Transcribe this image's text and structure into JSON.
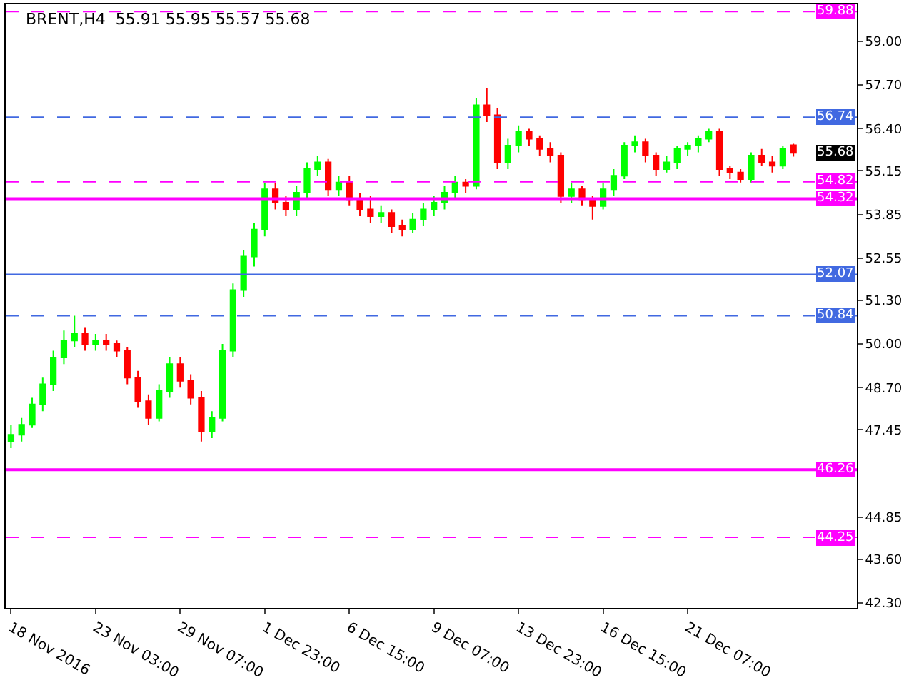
{
  "chart_data": {
    "type": "candlestick",
    "title": "BRENT,H4  55.91 55.95 55.57 55.68",
    "categories": [
      "18 Nov 2016",
      null,
      null,
      null,
      null,
      null,
      null,
      null,
      "23 Nov 03:00",
      null,
      null,
      null,
      null,
      null,
      null,
      null,
      "29 Nov 07:00",
      null,
      null,
      null,
      null,
      null,
      null,
      null,
      "1 Dec 23:00",
      null,
      null,
      null,
      null,
      null,
      null,
      null,
      "6 Dec 15:00",
      null,
      null,
      null,
      null,
      null,
      null,
      null,
      "9 Dec 07:00",
      null,
      null,
      null,
      null,
      null,
      null,
      null,
      "13 Dec 23:00",
      null,
      null,
      null,
      null,
      null,
      null,
      null,
      "16 Dec 15:00",
      null,
      null,
      null,
      null,
      null,
      null,
      null,
      "21 Dec 07:00",
      null,
      null,
      null,
      null,
      null,
      null,
      null,
      null,
      null,
      null
    ],
    "ohlc": [
      [
        47.1,
        47.6,
        46.9,
        47.3
      ],
      [
        47.3,
        47.8,
        47.1,
        47.6
      ],
      [
        47.6,
        48.4,
        47.5,
        48.2
      ],
      [
        48.2,
        49.0,
        48.0,
        48.8
      ],
      [
        48.8,
        49.8,
        48.6,
        49.6
      ],
      [
        49.6,
        50.4,
        49.4,
        50.1
      ],
      [
        50.1,
        50.84,
        49.9,
        50.3
      ],
      [
        50.3,
        50.5,
        49.8,
        50.0
      ],
      [
        50.0,
        50.3,
        49.8,
        50.1
      ],
      [
        50.1,
        50.3,
        49.8,
        50.0
      ],
      [
        50.0,
        50.1,
        49.6,
        49.8
      ],
      [
        49.8,
        49.9,
        48.8,
        49.0
      ],
      [
        49.0,
        49.2,
        48.1,
        48.3
      ],
      [
        48.3,
        48.5,
        47.6,
        47.8
      ],
      [
        47.8,
        48.8,
        47.7,
        48.6
      ],
      [
        48.6,
        49.6,
        48.4,
        49.4
      ],
      [
        49.4,
        49.6,
        48.7,
        48.9
      ],
      [
        48.9,
        49.1,
        48.2,
        48.4
      ],
      [
        48.4,
        48.6,
        47.1,
        47.4
      ],
      [
        47.4,
        48.0,
        47.2,
        47.8
      ],
      [
        47.8,
        50.0,
        47.7,
        49.8
      ],
      [
        49.8,
        51.8,
        49.6,
        51.6
      ],
      [
        51.6,
        52.8,
        51.4,
        52.6
      ],
      [
        52.6,
        53.6,
        52.3,
        53.4
      ],
      [
        53.4,
        54.8,
        53.2,
        54.6
      ],
      [
        54.6,
        54.8,
        54.0,
        54.2
      ],
      [
        54.2,
        54.4,
        53.8,
        54.0
      ],
      [
        54.0,
        54.7,
        53.8,
        54.5
      ],
      [
        54.5,
        55.4,
        54.3,
        55.2
      ],
      [
        55.2,
        55.6,
        55.0,
        55.4
      ],
      [
        55.4,
        55.5,
        54.4,
        54.6
      ],
      [
        54.6,
        55.0,
        54.4,
        54.8
      ],
      [
        54.8,
        55.0,
        54.1,
        54.3
      ],
      [
        54.3,
        54.5,
        53.8,
        54.0
      ],
      [
        54.0,
        54.4,
        53.6,
        53.8
      ],
      [
        53.8,
        54.1,
        53.6,
        53.9
      ],
      [
        53.9,
        54.0,
        53.3,
        53.5
      ],
      [
        53.5,
        53.7,
        53.2,
        53.4
      ],
      [
        53.4,
        53.9,
        53.3,
        53.7
      ],
      [
        53.7,
        54.2,
        53.5,
        54.0
      ],
      [
        54.0,
        54.4,
        53.8,
        54.2
      ],
      [
        54.2,
        54.7,
        54.0,
        54.5
      ],
      [
        54.5,
        55.0,
        54.3,
        54.8
      ],
      [
        54.8,
        54.9,
        54.5,
        54.7
      ],
      [
        54.7,
        57.3,
        54.6,
        57.1
      ],
      [
        57.1,
        57.6,
        56.6,
        56.8
      ],
      [
        56.8,
        57.0,
        55.2,
        55.4
      ],
      [
        55.4,
        56.1,
        55.2,
        55.9
      ],
      [
        55.9,
        56.5,
        55.7,
        56.3
      ],
      [
        56.3,
        56.4,
        55.9,
        56.1
      ],
      [
        56.1,
        56.2,
        55.6,
        55.8
      ],
      [
        55.8,
        56.0,
        55.4,
        55.6
      ],
      [
        55.6,
        55.7,
        54.2,
        54.4
      ],
      [
        54.4,
        54.8,
        54.2,
        54.6
      ],
      [
        54.6,
        54.7,
        54.1,
        54.3
      ],
      [
        54.3,
        54.4,
        53.7,
        54.1
      ],
      [
        54.1,
        54.8,
        54.0,
        54.6
      ],
      [
        54.6,
        55.2,
        54.4,
        55.0
      ],
      [
        55.0,
        56.0,
        54.9,
        55.9
      ],
      [
        55.9,
        56.2,
        55.7,
        56.0
      ],
      [
        56.0,
        56.1,
        55.4,
        55.6
      ],
      [
        55.6,
        55.7,
        55.0,
        55.2
      ],
      [
        55.2,
        55.6,
        55.1,
        55.4
      ],
      [
        55.4,
        55.9,
        55.2,
        55.8
      ],
      [
        55.8,
        56.0,
        55.6,
        55.9
      ],
      [
        55.9,
        56.2,
        55.7,
        56.1
      ],
      [
        56.1,
        56.4,
        56.0,
        56.3
      ],
      [
        56.3,
        56.4,
        55.0,
        55.2
      ],
      [
        55.2,
        55.3,
        54.9,
        55.1
      ],
      [
        55.1,
        55.2,
        54.8,
        54.9
      ],
      [
        54.9,
        55.7,
        54.8,
        55.6
      ],
      [
        55.6,
        55.8,
        55.3,
        55.4
      ],
      [
        55.4,
        55.6,
        55.1,
        55.3
      ],
      [
        55.3,
        55.9,
        55.2,
        55.8
      ],
      [
        55.91,
        55.95,
        55.57,
        55.68
      ]
    ],
    "colors": [
      "#00ff00",
      "#00ff00",
      "#00ff00",
      "#00ff00",
      "#00ff00",
      "#00ff00",
      "#00ff00",
      "#ff0000",
      "#00ff00",
      "#ff0000",
      "#ff0000",
      "#ff0000",
      "#ff0000",
      "#ff0000",
      "#00ff00",
      "#00ff00",
      "#ff0000",
      "#ff0000",
      "#ff0000",
      "#00ff00",
      "#00ff00",
      "#00ff00",
      "#00ff00",
      "#00ff00",
      "#00ff00",
      "#ff0000",
      "#ff0000",
      "#00ff00",
      "#00ff00",
      "#00ff00",
      "#ff0000",
      "#00ff00",
      "#ff0000",
      "#ff0000",
      "#ff0000",
      "#00ff00",
      "#ff0000",
      "#ff0000",
      "#00ff00",
      "#00ff00",
      "#00ff00",
      "#00ff00",
      "#00ff00",
      "#ff0000",
      "#00ff00",
      "#ff0000",
      "#ff0000",
      "#00ff00",
      "#00ff00",
      "#ff0000",
      "#ff0000",
      "#ff0000",
      "#ff0000",
      "#00ff00",
      "#ff0000",
      "#ff0000",
      "#00ff00",
      "#00ff00",
      "#00ff00",
      "#00ff00",
      "#ff0000",
      "#ff0000",
      "#00ff00",
      "#00ff00",
      "#00ff00",
      "#00ff00",
      "#00ff00",
      "#ff0000",
      "#ff0000",
      "#ff0000",
      "#00ff00",
      "#ff0000",
      "#ff0000",
      "#00ff00",
      "#ff0000"
    ],
    "ylim": [
      42.15,
      60.1
    ],
    "yticks": [
      {
        "value": 42.3,
        "label": "42.30"
      },
      {
        "value": 43.6,
        "label": "43.60"
      },
      {
        "value": 44.85,
        "label": "44.85"
      },
      {
        "value": 47.45,
        "label": "47.45"
      },
      {
        "value": 48.7,
        "label": "48.70"
      },
      {
        "value": 50.0,
        "label": "50.00"
      },
      {
        "value": 51.3,
        "label": "51.30"
      },
      {
        "value": 52.55,
        "label": "52.55"
      },
      {
        "value": 53.85,
        "label": "53.85"
      },
      {
        "value": 55.15,
        "label": "55.15"
      },
      {
        "value": 56.4,
        "label": "56.40"
      },
      {
        "value": 57.7,
        "label": "57.70"
      },
      {
        "value": 59.0,
        "label": "59.00"
      }
    ],
    "ref_lines": [
      {
        "axis": "y",
        "value": 59.88,
        "label": "59.88",
        "color": "#ff00ff",
        "line_style": "dashed"
      },
      {
        "axis": "y",
        "value": 56.74,
        "label": "56.74",
        "color": "#4169e1",
        "line_style": "dashed"
      },
      {
        "axis": "y",
        "value": 54.82,
        "label": "54.82",
        "color": "#ff00ff",
        "line_style": "dashed"
      },
      {
        "axis": "y",
        "value": 54.32,
        "label": "54.32",
        "color": "#ff00ff",
        "line_style": "solid"
      },
      {
        "axis": "y",
        "value": 52.07,
        "label": "52.07",
        "color": "#4169e1",
        "line_style": "solid"
      },
      {
        "axis": "y",
        "value": 50.84,
        "label": "50.84",
        "color": "#4169e1",
        "line_style": "dashed"
      },
      {
        "axis": "y",
        "value": 46.26,
        "label": "46.26",
        "color": "#ff00ff",
        "line_style": "solid"
      },
      {
        "axis": "y",
        "value": 44.25,
        "label": "44.25",
        "color": "#ff00ff",
        "line_style": "dashed"
      }
    ],
    "annotations": [
      "55.68"
    ],
    "legend": false
  }
}
